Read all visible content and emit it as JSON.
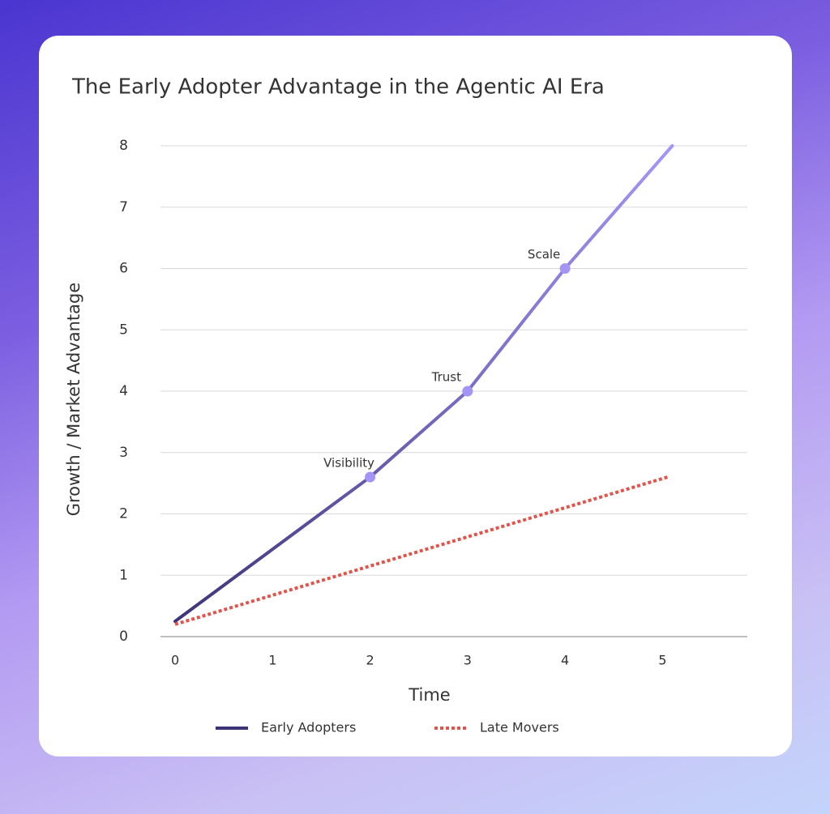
{
  "chart_data": {
    "type": "line",
    "title": "The Early Adopter Advantage in the Agentic AI Era",
    "xlabel": "Time",
    "ylabel": "Growth / Market Advantage",
    "xlim": [
      -0.15,
      5.87
    ],
    "ylim": [
      0,
      8
    ],
    "xticks": [
      0,
      1,
      2,
      3,
      4,
      5
    ],
    "yticks": [
      0,
      1,
      2,
      3,
      4,
      5,
      6,
      7,
      8
    ],
    "grid": true,
    "legend": "bottom",
    "series": [
      {
        "name": "Early Adopters",
        "color": [
          "#3d3478",
          "#a595f7"
        ],
        "marker_color": "#a394f5",
        "x": [
          0,
          2,
          3,
          4,
          5.1
        ],
        "values": [
          0.25,
          2.6,
          4,
          6,
          8
        ],
        "point_labels": [
          null,
          "Visibility",
          "Trust",
          "Scale",
          null
        ]
      },
      {
        "name": "Late Movers",
        "color": "#e0544c",
        "dash": "dotted",
        "x": [
          0,
          5.05
        ],
        "values": [
          0.2,
          2.6
        ]
      }
    ]
  }
}
